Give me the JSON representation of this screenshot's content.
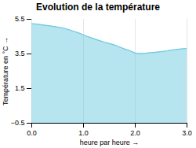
{
  "chart_data": {
    "type": "area",
    "title": "Evolution de la température",
    "xlabel": "heure par heure",
    "ylabel": "Température en °C",
    "x": [
      0.0,
      0.1,
      0.2,
      0.3,
      0.4,
      0.5,
      0.6,
      0.7,
      0.8,
      0.9,
      1.0,
      1.1,
      1.2,
      1.3,
      1.4,
      1.5,
      1.6,
      1.7,
      1.8,
      1.9,
      2.0,
      2.1,
      2.2,
      2.3,
      2.4,
      2.5,
      2.6,
      2.7,
      2.8,
      2.9,
      3.0
    ],
    "values": [
      5.25,
      5.22,
      5.18,
      5.14,
      5.1,
      5.05,
      5.0,
      4.92,
      4.82,
      4.72,
      4.6,
      4.48,
      4.38,
      4.28,
      4.18,
      4.1,
      4.02,
      3.9,
      3.78,
      3.68,
      3.55,
      3.52,
      3.54,
      3.57,
      3.6,
      3.63,
      3.67,
      3.72,
      3.76,
      3.79,
      3.82
    ],
    "color": "#6ec9e0",
    "xlim": [
      0,
      3
    ],
    "ylim": [
      -0.5,
      5.5
    ],
    "xticks": [
      0,
      1,
      2,
      3
    ],
    "yticks": [
      -0.5,
      1.5,
      3.5,
      5.5
    ],
    "grid": "x"
  }
}
